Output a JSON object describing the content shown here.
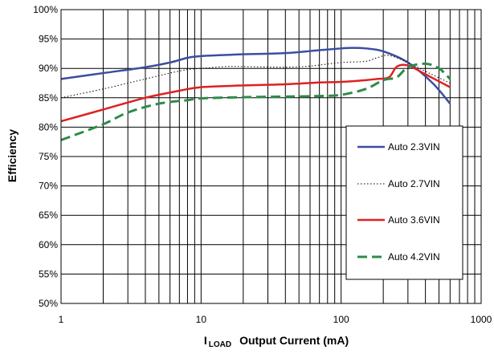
{
  "chart_data": {
    "type": "line",
    "title": "",
    "ylabel": "Efficiency",
    "xlabel": {
      "prefix": "I",
      "subscript": "LOAD",
      "text": "Output Current (mA)"
    },
    "x_scale": "log",
    "xlim": [
      1,
      1000
    ],
    "ylim": [
      50,
      100
    ],
    "grid": true,
    "x_tick_labels": [
      {
        "value": 1,
        "label": "1"
      },
      {
        "value": 10,
        "label": "10"
      },
      {
        "value": 100,
        "label": "100"
      },
      {
        "value": 1000,
        "label": "1000"
      }
    ],
    "y_tick_labels": [
      {
        "value": 100,
        "label": "100%"
      },
      {
        "value": 95,
        "label": "95%"
      },
      {
        "value": 90,
        "label": "90%"
      },
      {
        "value": 85,
        "label": "85%"
      },
      {
        "value": 80,
        "label": "80%"
      },
      {
        "value": 75,
        "label": "75%"
      },
      {
        "value": 70,
        "label": "70%"
      },
      {
        "value": 65,
        "label": "65%"
      },
      {
        "value": 60,
        "label": "60%"
      },
      {
        "value": 55,
        "label": "55%"
      },
      {
        "value": 50,
        "label": "50%"
      }
    ],
    "legend_position": "right",
    "series": [
      {
        "name": "Auto 2.3VIN",
        "color": "#3a4fa0",
        "style": "solid",
        "x": [
          1,
          2,
          4,
          6,
          8,
          10,
          20,
          40,
          70,
          100,
          120,
          150,
          200,
          300,
          450,
          600
        ],
        "y": [
          88.2,
          89.2,
          90.2,
          91.0,
          91.8,
          92.1,
          92.4,
          92.6,
          93.1,
          93.4,
          93.5,
          93.4,
          92.9,
          91.0,
          87.5,
          84.0
        ]
      },
      {
        "name": "Auto 2.7VIN",
        "color": "#000000",
        "style": "dotted",
        "x": [
          1,
          2,
          4,
          6,
          8,
          10,
          15,
          20,
          40,
          60,
          100,
          150,
          180,
          220,
          300,
          400,
          600
        ],
        "y": [
          85.0,
          86.5,
          88.2,
          89.2,
          89.8,
          90.0,
          90.3,
          90.3,
          90.2,
          90.4,
          91.0,
          91.2,
          91.8,
          92.2,
          91.0,
          89.5,
          87.5
        ]
      },
      {
        "name": "Auto 3.6VIN",
        "color": "#e02020",
        "style": "solid",
        "x": [
          1,
          2,
          4,
          7,
          10,
          20,
          40,
          70,
          100,
          150,
          180,
          220,
          250,
          300,
          400,
          600
        ],
        "y": [
          81.0,
          83.0,
          85.0,
          86.2,
          86.8,
          87.1,
          87.3,
          87.6,
          87.7,
          88.0,
          88.2,
          88.5,
          90.3,
          90.5,
          89.0,
          86.8
        ]
      },
      {
        "name": "Auto 4.2VIN",
        "color": "#2e8b4a",
        "style": "dashed",
        "x": [
          1,
          2,
          3,
          5,
          8,
          10,
          20,
          40,
          70,
          100,
          150,
          200,
          250,
          300,
          400,
          500,
          600
        ],
        "y": [
          77.8,
          80.5,
          82.5,
          84.0,
          84.6,
          84.9,
          85.1,
          85.2,
          85.3,
          85.5,
          86.5,
          88.0,
          88.5,
          90.2,
          90.8,
          90.0,
          88.2
        ]
      }
    ]
  }
}
